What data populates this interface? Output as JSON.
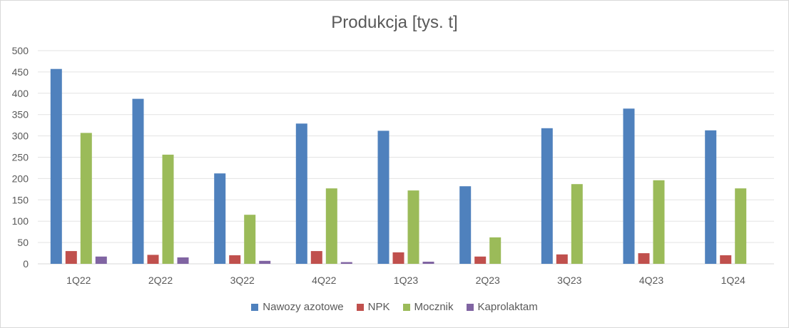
{
  "chart_data": {
    "type": "bar",
    "title": "Produkcja [tys. t]",
    "categories": [
      "1Q22",
      "2Q22",
      "3Q22",
      "4Q22",
      "1Q23",
      "2Q23",
      "3Q23",
      "4Q23",
      "1Q24"
    ],
    "ylim": [
      0,
      500
    ],
    "yticks": [
      "0",
      "50",
      "100",
      "150",
      "200",
      "250",
      "300",
      "350",
      "400",
      "450",
      "500"
    ],
    "grid": true,
    "legend_position": "bottom",
    "series": [
      {
        "name": "Nawozy azotowe",
        "color": "#4f81bd",
        "values": [
          457,
          387,
          212,
          329,
          312,
          182,
          318,
          364,
          313
        ]
      },
      {
        "name": "NPK",
        "color": "#c0504d",
        "values": [
          30,
          21,
          20,
          30,
          27,
          17,
          22,
          25,
          20
        ]
      },
      {
        "name": "Mocznik",
        "color": "#9bbb59",
        "values": [
          307,
          256,
          115,
          177,
          172,
          62,
          187,
          196,
          177
        ]
      },
      {
        "name": "Kaprolaktam",
        "color": "#8064a2",
        "values": [
          17,
          15,
          7,
          4,
          5,
          0,
          0,
          0,
          0
        ]
      }
    ]
  }
}
